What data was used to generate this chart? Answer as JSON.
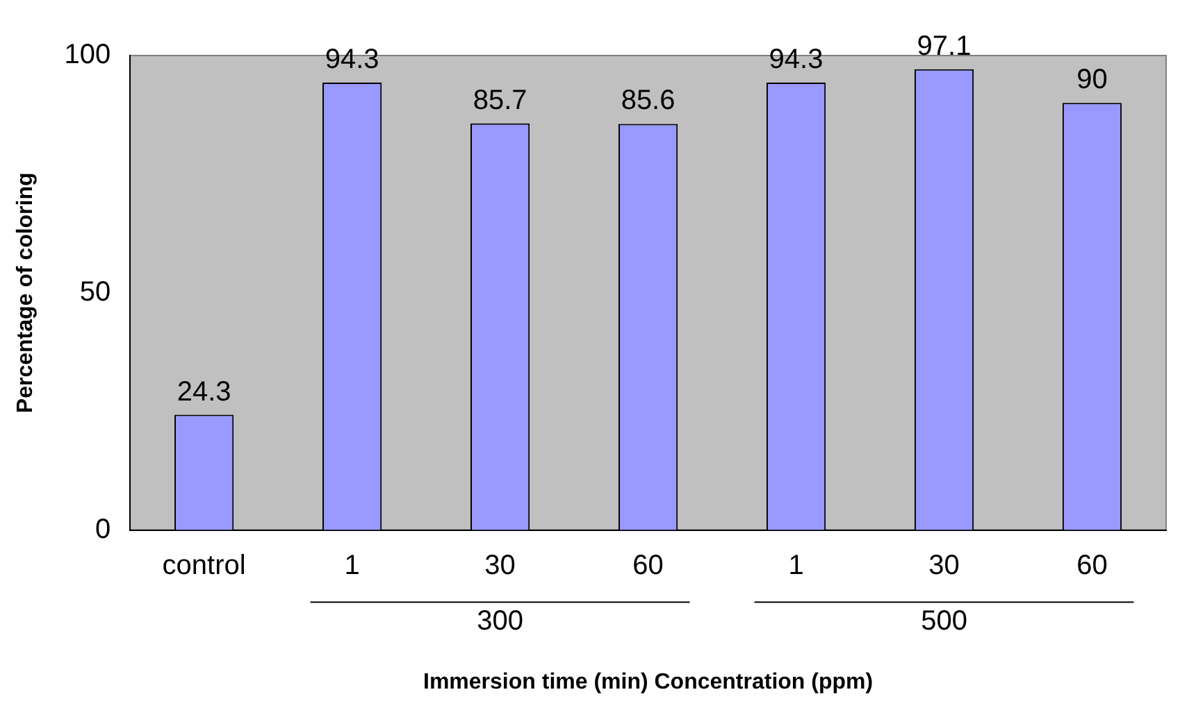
{
  "chart_data": {
    "type": "bar",
    "categories": [
      "control",
      "1",
      "30",
      "60",
      "1",
      "30",
      "60"
    ],
    "values": [
      24.3,
      94.3,
      85.7,
      85.6,
      94.3,
      97.1,
      90
    ],
    "color": "#9999ff",
    "xlabel": "Immersion time (min) Concentration (ppm)",
    "ylabel": "Percentage of coloring",
    "ylim": [
      0,
      100
    ],
    "yticks": [
      0,
      50,
      100
    ],
    "grid": false,
    "legend": false,
    "data_labels": true,
    "annotations": [
      "300",
      "500"
    ]
  }
}
